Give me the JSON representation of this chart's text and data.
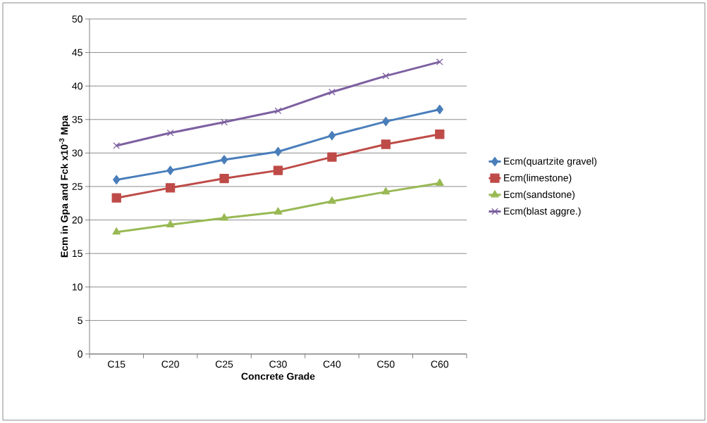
{
  "chart_data": {
    "type": "line",
    "xlabel": "Concrete Grade",
    "ylabel": "Ecm  in Gpa and Fck x10$^{-3}$ Mpa",
    "categories": [
      "C15",
      "C20",
      "C25",
      "C30",
      "C40",
      "C50",
      "C60"
    ],
    "series": [
      {
        "name": "Ecm(quartzite gravel)",
        "color": "#4a7ebb",
        "marker": "diamond",
        "values": [
          26.0,
          27.4,
          29.0,
          30.2,
          32.6,
          34.7,
          36.5
        ]
      },
      {
        "name": "Ecm(limestone)",
        "color": "#be4b48",
        "marker": "square",
        "values": [
          23.3,
          24.8,
          26.2,
          27.4,
          29.4,
          31.3,
          32.8
        ]
      },
      {
        "name": "Ecm(sandstone)",
        "color": "#98b954",
        "marker": "triangle",
        "values": [
          18.2,
          19.3,
          20.3,
          21.2,
          22.8,
          24.2,
          25.5
        ]
      },
      {
        "name": "Ecm(blast aggre.)",
        "color": "#7d60a0",
        "marker": "cross",
        "values": [
          31.1,
          33.0,
          34.6,
          36.3,
          39.1,
          41.5,
          43.6
        ]
      }
    ],
    "ylim": [
      0,
      50
    ],
    "yticks": [
      0,
      5,
      10,
      15,
      20,
      25,
      30,
      35,
      40,
      45,
      50
    ],
    "grid": "y",
    "legend": "right",
    "line_style": "solid"
  }
}
